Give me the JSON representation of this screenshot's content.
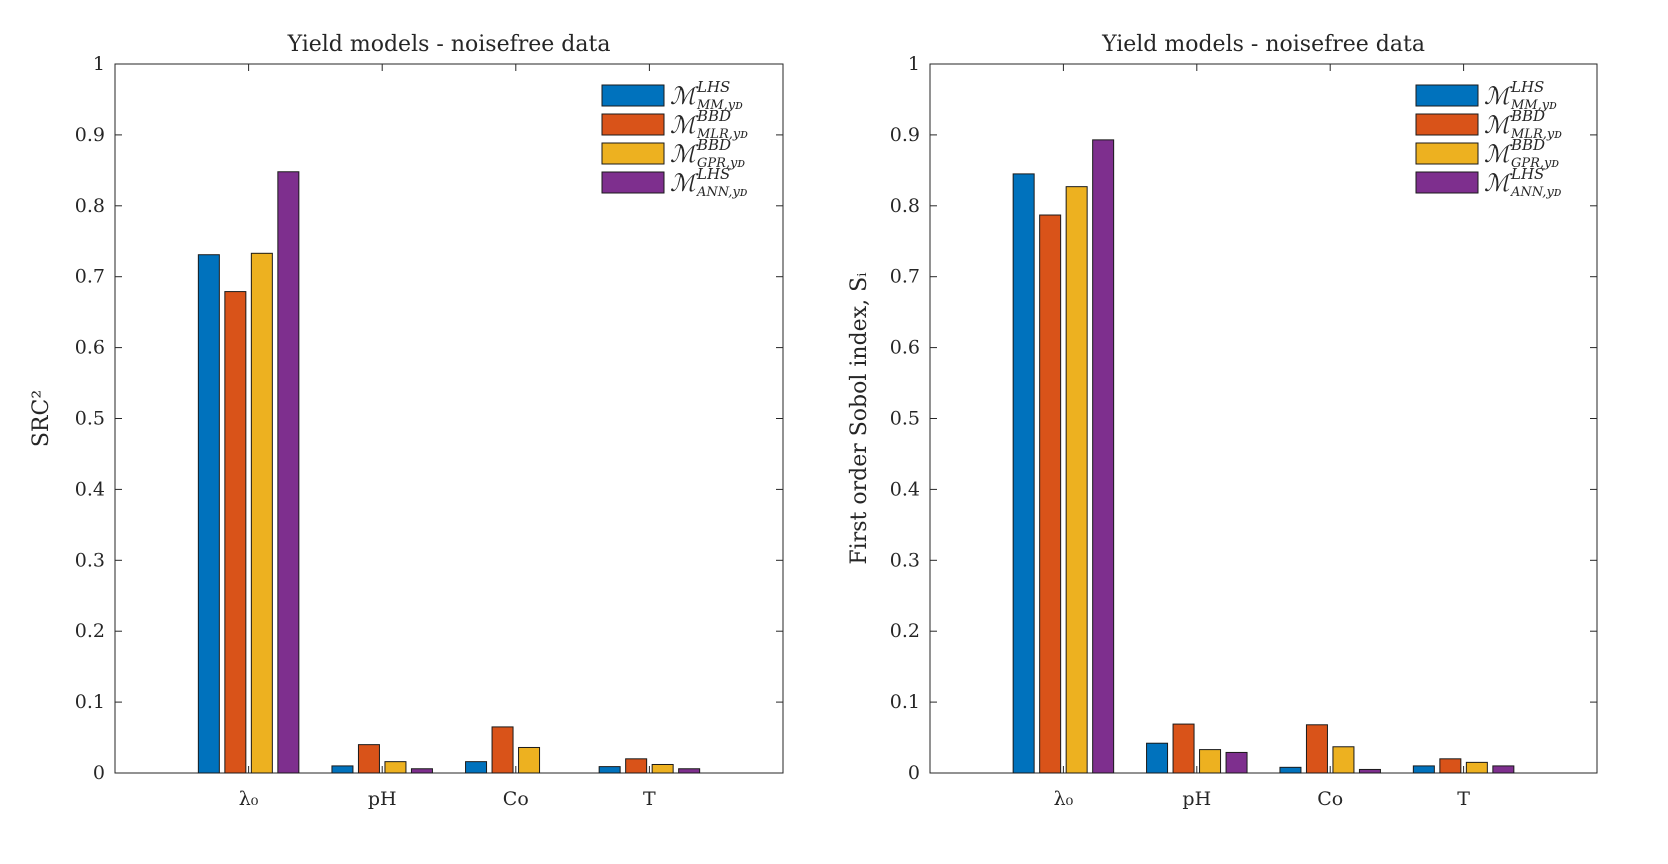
{
  "chart_data": [
    {
      "type": "bar",
      "title": "Yield models - noisefree data",
      "ylabel": "SRC²",
      "xlabel": "",
      "ylim": [
        0,
        1
      ],
      "yticks": [
        "0",
        "0.1",
        "0.2",
        "0.3",
        "0.4",
        "0.5",
        "0.6",
        "0.7",
        "0.8",
        "0.9",
        "1"
      ],
      "categories": [
        "λ₀",
        "pH",
        "Co",
        "T"
      ],
      "legend_position": "top-right",
      "grid": false,
      "series": [
        {
          "name": "ℳ",
          "sup": "LHS",
          "sub": "MM,yᴅ",
          "color": "#0072BD",
          "values": [
            0.731,
            0.01,
            0.016,
            0.009
          ]
        },
        {
          "name": "ℳ",
          "sup": "BBD",
          "sub": "MLR,yᴅ",
          "color": "#D95319",
          "values": [
            0.679,
            0.04,
            0.065,
            0.02
          ]
        },
        {
          "name": "ℳ",
          "sup": "BBD",
          "sub": "GPR,yᴅ",
          "color": "#EDB120",
          "values": [
            0.733,
            0.016,
            0.036,
            0.012
          ]
        },
        {
          "name": "ℳ",
          "sup": "LHS",
          "sub": "ANN,yᴅ",
          "color": "#7E2F8E",
          "values": [
            0.848,
            0.006,
            0.0,
            0.006
          ]
        }
      ]
    },
    {
      "type": "bar",
      "title": "Yield models - noisefree data",
      "ylabel": "First order Sobol index, Sᵢ",
      "xlabel": "",
      "ylim": [
        0,
        1
      ],
      "yticks": [
        "0",
        "0.1",
        "0.2",
        "0.3",
        "0.4",
        "0.5",
        "0.6",
        "0.7",
        "0.8",
        "0.9",
        "1"
      ],
      "categories": [
        "λ₀",
        "pH",
        "Co",
        "T"
      ],
      "legend_position": "top-right",
      "grid": false,
      "series": [
        {
          "name": "ℳ",
          "sup": "LHS",
          "sub": "MM,yᴅ",
          "color": "#0072BD",
          "values": [
            0.845,
            0.042,
            0.008,
            0.01
          ]
        },
        {
          "name": "ℳ",
          "sup": "BBD",
          "sub": "MLR,yᴅ",
          "color": "#D95319",
          "values": [
            0.787,
            0.069,
            0.068,
            0.02
          ]
        },
        {
          "name": "ℳ",
          "sup": "BBD",
          "sub": "GPR,yᴅ",
          "color": "#EDB120",
          "values": [
            0.827,
            0.033,
            0.037,
            0.015
          ]
        },
        {
          "name": "ℳ",
          "sup": "LHS",
          "sub": "ANN,yᴅ",
          "color": "#7E2F8E",
          "values": [
            0.893,
            0.029,
            0.005,
            0.01
          ]
        }
      ]
    }
  ]
}
